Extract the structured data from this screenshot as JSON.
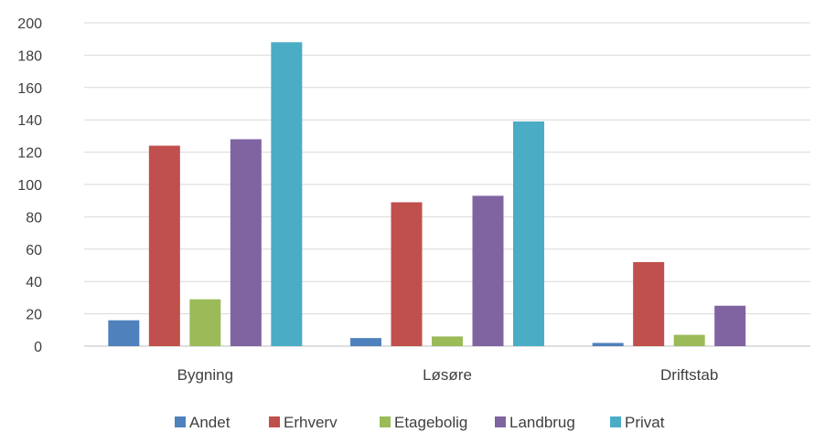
{
  "chart_data": {
    "type": "bar",
    "categories": [
      "Bygning",
      "Løsøre",
      "Driftstab"
    ],
    "series": [
      {
        "name": "Andet",
        "color": "#4F81BD",
        "values": [
          16,
          5,
          2
        ]
      },
      {
        "name": "Erhverv",
        "color": "#C0504D",
        "values": [
          124,
          89,
          52
        ]
      },
      {
        "name": "Etagebolig",
        "color": "#9BBB59",
        "values": [
          29,
          6,
          7
        ]
      },
      {
        "name": "Landbrug",
        "color": "#8064A2",
        "values": [
          128,
          93,
          25
        ]
      },
      {
        "name": "Privat",
        "color": "#4BACC6",
        "values": [
          188,
          139,
          0
        ]
      }
    ],
    "ylim": [
      0,
      200
    ],
    "yticks": [
      0,
      20,
      40,
      60,
      80,
      100,
      120,
      140,
      160,
      180,
      200
    ],
    "grid": true,
    "legend_position": "bottom"
  }
}
